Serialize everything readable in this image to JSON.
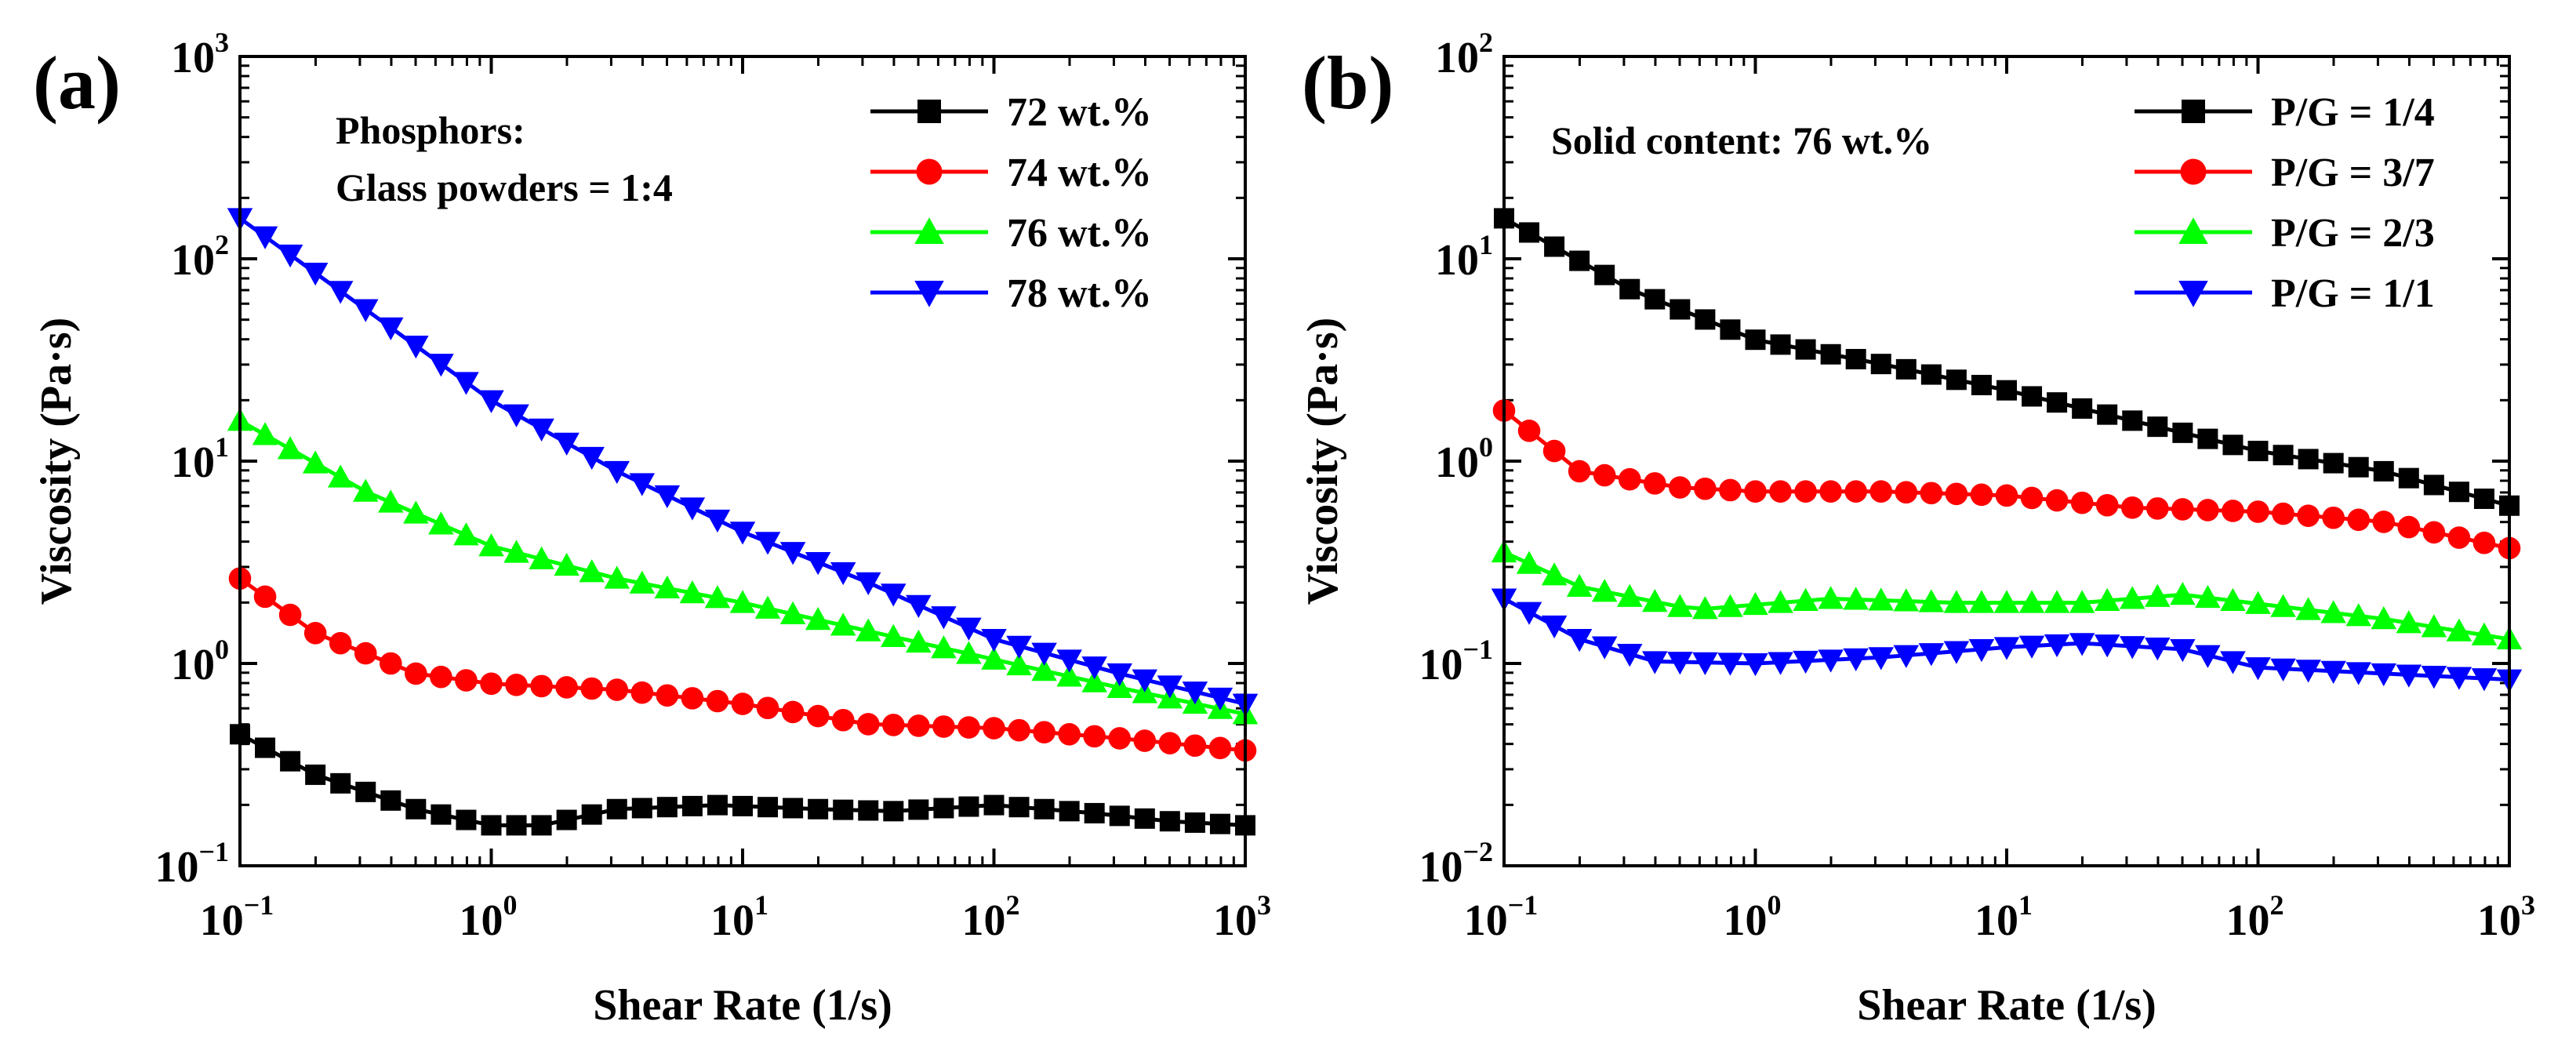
{
  "chart_data": [
    {
      "panel": "(a)",
      "type": "scatter",
      "scale": "log-log",
      "xlabel": "Shear Rate (1/s)",
      "ylabel": "Viscosity (Pa·s)",
      "xlim_exp": [
        -1,
        3
      ],
      "ylim_exp": [
        -1,
        3
      ],
      "x_ticks": [
        {
          "base": "10",
          "exp": "−1"
        },
        {
          "base": "10",
          "exp": "0"
        },
        {
          "base": "10",
          "exp": "1"
        },
        {
          "base": "10",
          "exp": "2"
        },
        {
          "base": "10",
          "exp": "3"
        }
      ],
      "y_ticks": [
        {
          "base": "10",
          "exp": "−1"
        },
        {
          "base": "10",
          "exp": "0"
        },
        {
          "base": "10",
          "exp": "1"
        },
        {
          "base": "10",
          "exp": "2"
        },
        {
          "base": "10",
          "exp": "3"
        }
      ],
      "annotation": [
        "Phosphors:",
        "Glass powders = 1:4"
      ],
      "legend_position": "top-right",
      "points_per_series": 41,
      "series": [
        {
          "name": "72 wt.%",
          "marker": "square",
          "color": "#000000",
          "keypoints": [
            [
              -1,
              -0.35
            ],
            [
              -0.7,
              -0.55
            ],
            [
              -0.3,
              -0.72
            ],
            [
              0,
              -0.8
            ],
            [
              0.2,
              -0.8
            ],
            [
              0.5,
              -0.72
            ],
            [
              0.9,
              -0.7
            ],
            [
              1.3,
              -0.72
            ],
            [
              1.6,
              -0.73
            ],
            [
              2,
              -0.7
            ],
            [
              2.4,
              -0.74
            ],
            [
              2.7,
              -0.78
            ],
            [
              3,
              -0.8
            ]
          ]
        },
        {
          "name": "74 wt.%",
          "marker": "circle",
          "color": "#ff0000",
          "keypoints": [
            [
              -1,
              0.42
            ],
            [
              -0.7,
              0.15
            ],
            [
              -0.3,
              -0.05
            ],
            [
              0,
              -0.1
            ],
            [
              0.5,
              -0.13
            ],
            [
              1,
              -0.2
            ],
            [
              1.5,
              -0.3
            ],
            [
              2,
              -0.32
            ],
            [
              2.5,
              -0.37
            ],
            [
              3,
              -0.43
            ]
          ]
        },
        {
          "name": "76 wt.%",
          "marker": "triangle-up",
          "color": "#00ff00",
          "keypoints": [
            [
              -1,
              1.2
            ],
            [
              -0.5,
              0.85
            ],
            [
              0,
              0.58
            ],
            [
              0.5,
              0.42
            ],
            [
              1,
              0.3
            ],
            [
              1.5,
              0.16
            ],
            [
              2,
              0.02
            ],
            [
              2.5,
              -0.12
            ],
            [
              3,
              -0.25
            ]
          ]
        },
        {
          "name": "78 wt.%",
          "marker": "triangle-down",
          "color": "#0000ff",
          "keypoints": [
            [
              -1,
              2.2
            ],
            [
              -0.5,
              1.75
            ],
            [
              0,
              1.3
            ],
            [
              0.5,
              0.95
            ],
            [
              1,
              0.65
            ],
            [
              1.5,
              0.4
            ],
            [
              2,
              0.12
            ],
            [
              2.5,
              -0.05
            ],
            [
              3,
              -0.2
            ]
          ]
        }
      ]
    },
    {
      "panel": "(b)",
      "type": "scatter",
      "scale": "log-log",
      "xlabel": "Shear Rate (1/s)",
      "ylabel": "Viscosity (Pa·s)",
      "xlim_exp": [
        -1,
        3
      ],
      "ylim_exp": [
        -2,
        2
      ],
      "x_ticks": [
        {
          "base": "10",
          "exp": "−1"
        },
        {
          "base": "10",
          "exp": "0"
        },
        {
          "base": "10",
          "exp": "1"
        },
        {
          "base": "10",
          "exp": "2"
        },
        {
          "base": "10",
          "exp": "3"
        }
      ],
      "y_ticks": [
        {
          "base": "10",
          "exp": "−2"
        },
        {
          "base": "10",
          "exp": "−1"
        },
        {
          "base": "10",
          "exp": "0"
        },
        {
          "base": "10",
          "exp": "1"
        },
        {
          "base": "10",
          "exp": "2"
        }
      ],
      "annotation": [
        "Solid content: 76 wt.%"
      ],
      "legend_position": "top-right",
      "points_per_series": 41,
      "series": [
        {
          "name": "P/G = 1/4",
          "marker": "square",
          "color": "#000000",
          "keypoints": [
            [
              -1,
              1.2
            ],
            [
              -0.5,
              0.85
            ],
            [
              0,
              0.6
            ],
            [
              0.5,
              0.48
            ],
            [
              1,
              0.35
            ],
            [
              1.5,
              0.2
            ],
            [
              2,
              0.05
            ],
            [
              2.5,
              -0.05
            ],
            [
              3,
              -0.22
            ]
          ]
        },
        {
          "name": "P/G = 3/7",
          "marker": "circle",
          "color": "#ff0000",
          "keypoints": [
            [
              -1,
              0.25
            ],
            [
              -0.7,
              -0.05
            ],
            [
              -0.3,
              -0.13
            ],
            [
              0,
              -0.15
            ],
            [
              0.5,
              -0.15
            ],
            [
              1,
              -0.17
            ],
            [
              1.5,
              -0.23
            ],
            [
              2,
              -0.25
            ],
            [
              2.5,
              -0.3
            ],
            [
              3,
              -0.43
            ]
          ]
        },
        {
          "name": "P/G = 2/3",
          "marker": "triangle-up",
          "color": "#00ff00",
          "keypoints": [
            [
              -1,
              -0.45
            ],
            [
              -0.7,
              -0.62
            ],
            [
              -0.3,
              -0.72
            ],
            [
              -0.2,
              -0.73
            ],
            [
              0.3,
              -0.68
            ],
            [
              0.8,
              -0.7
            ],
            [
              1.3,
              -0.7
            ],
            [
              1.7,
              -0.66
            ],
            [
              2.1,
              -0.72
            ],
            [
              2.5,
              -0.78
            ],
            [
              3,
              -0.88
            ]
          ]
        },
        {
          "name": "P/G = 1/1",
          "marker": "triangle-down",
          "color": "#0000ff",
          "keypoints": [
            [
              -1,
              -0.68
            ],
            [
              -0.7,
              -0.88
            ],
            [
              -0.4,
              -0.99
            ],
            [
              0,
              -1.0
            ],
            [
              0.5,
              -0.97
            ],
            [
              1,
              -0.92
            ],
            [
              1.3,
              -0.9
            ],
            [
              1.7,
              -0.93
            ],
            [
              2,
              -1.02
            ],
            [
              2.5,
              -1.05
            ],
            [
              3,
              -1.08
            ]
          ]
        }
      ]
    }
  ]
}
